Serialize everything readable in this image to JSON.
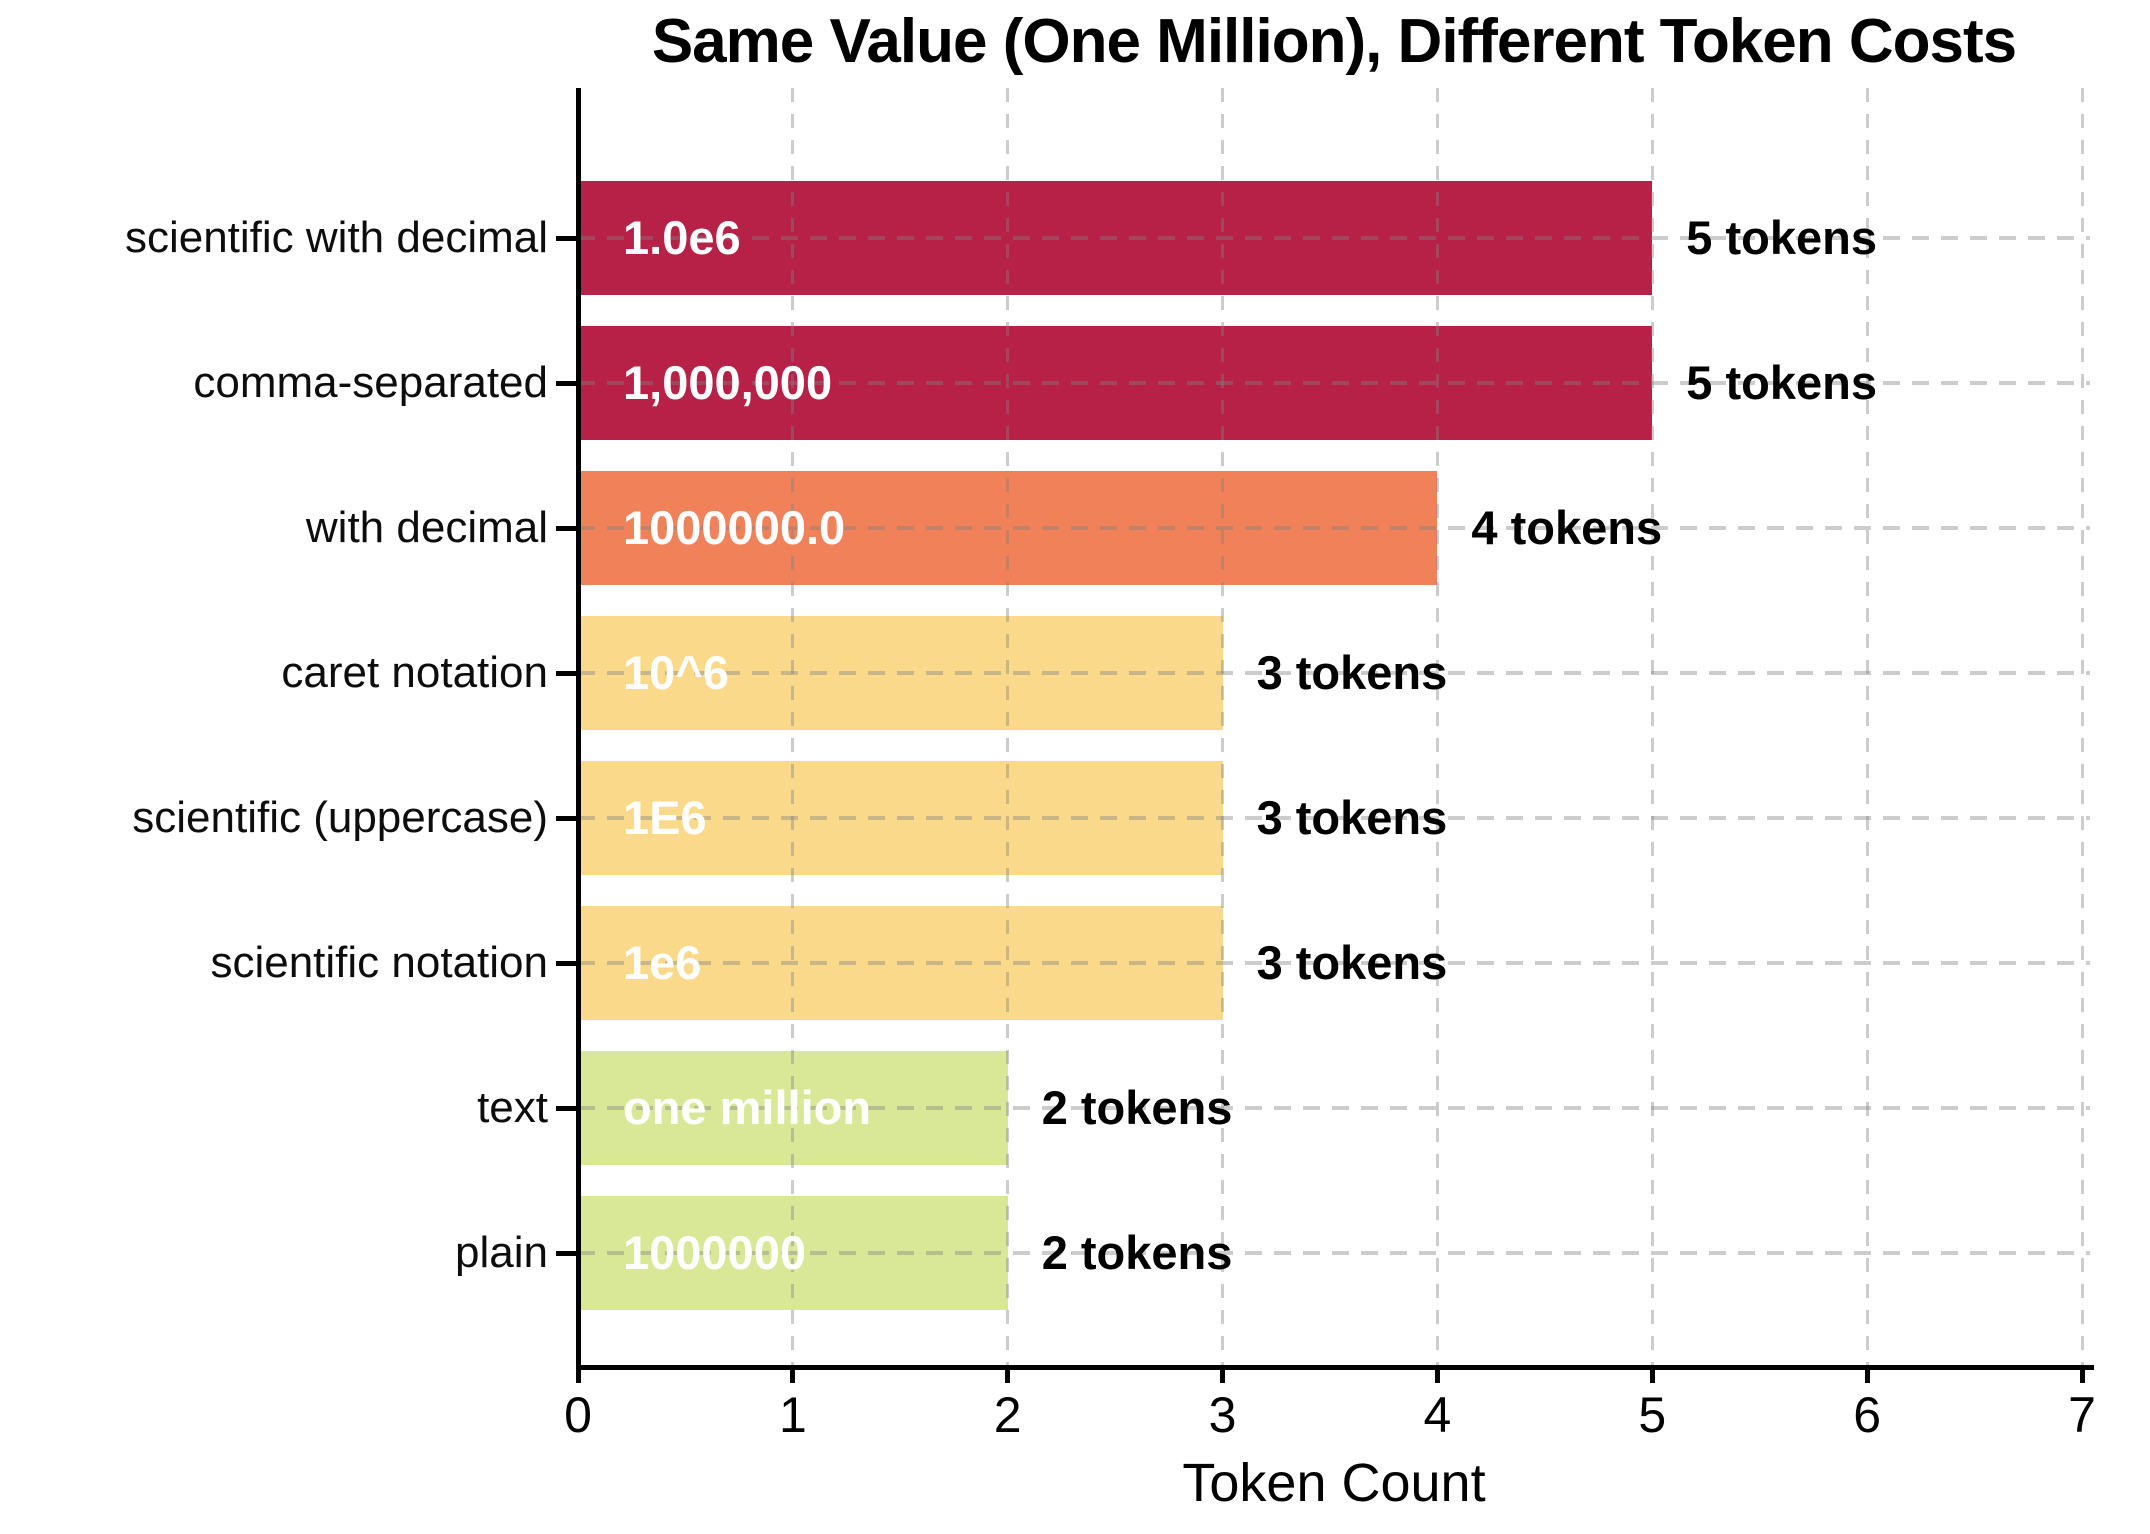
{
  "title": "Same Value (One Million), Different Token Costs",
  "xlabel": "Token Count",
  "chart_data": {
    "type": "bar",
    "orientation": "horizontal",
    "title": "Same Value (One Million), Different Token Costs",
    "xlabel": "Token Count",
    "ylabel": "",
    "xlim": [
      0,
      7
    ],
    "x_tick_labels": [
      "0",
      "1",
      "2",
      "3",
      "4",
      "5",
      "6",
      "7"
    ],
    "grid": "dashed, both axes",
    "legend": "none",
    "categories": [
      "scientific with decimal",
      "comma-separated",
      "with decimal",
      "caret notation",
      "scientific (uppercase)",
      "scientific notation",
      "text",
      "plain"
    ],
    "values": [
      5,
      5,
      4,
      3,
      3,
      3,
      2,
      2
    ],
    "bar_text_labels": [
      "1.0e6",
      "1,000,000",
      "1000000.0",
      "10^6",
      "1E6",
      "1e6",
      "one million",
      "1000000"
    ],
    "annotations": [
      "5 tokens",
      "5 tokens",
      "4 tokens",
      "3 tokens",
      "3 tokens",
      "3 tokens",
      "2 tokens",
      "2 tokens"
    ],
    "bar_colors": [
      "#B72047",
      "#B72047",
      "#F08159",
      "#FAD98A",
      "#FAD98A",
      "#FAD98A",
      "#D8E897",
      "#D8E897"
    ],
    "colors": {
      "background": "#FFFFFF",
      "bar_value_text": "#FFFFFF",
      "annotation_text": "#000000",
      "axis": "#000000",
      "grid": "#C8C8C8"
    }
  }
}
